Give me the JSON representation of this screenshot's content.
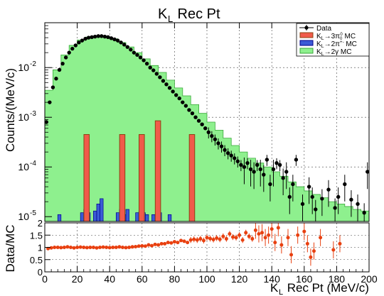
{
  "chart_data": {
    "type": "histogram",
    "title_main": "K",
    "title_sub": "L",
    "title_rest": " Rec Pt",
    "ylabel_top": "Counts/(MeV/c)",
    "ylabel_bottom": "Data/MC",
    "xlabel_main": "K",
    "xlabel_sub": "L",
    "xlabel_rest": " Rec Pt (MeV/c)",
    "xlim": [
      0,
      200
    ],
    "ylim_top_log": [
      8e-06,
      0.08
    ],
    "yscale_top": "log",
    "ylim_bottom": [
      0,
      2
    ],
    "grid": true,
    "legend_position": "top-right",
    "x_ticks": [
      "0",
      "20",
      "40",
      "60",
      "80",
      "100",
      "120",
      "140",
      "160",
      "180",
      "200"
    ],
    "y_ticks_top": [
      "10",
      "10",
      "10",
      "10"
    ],
    "y_ticks_top_exp": [
      "-5",
      "-4",
      "-3",
      "-2"
    ],
    "y_ticks_bottom": [
      "0",
      "0.5",
      "1",
      "1.5",
      "2"
    ],
    "colors": {
      "data": "#000000",
      "k3pi0": "#f05a4a",
      "k3pi0_edge": "#8b4513",
      "k2pi": "#3b5bd6",
      "k2pi_edge": "#00008b",
      "k2gamma": "#8ef08e",
      "k2gamma_edge": "#3aa83a",
      "ratio": "#e84010"
    },
    "legend": [
      {
        "label": "Data",
        "kind": "marker"
      },
      {
        "label": "K",
        "sub": "L",
        "rest": "→3π",
        "sub2": "0",
        "sup": "0",
        "tail": " MC",
        "kind": "k3pi0"
      },
      {
        "label": "K",
        "sub": "L",
        "rest": "→2π",
        "sup": "+",
        "sup2": "-",
        "tail": " MC",
        "kind": "k2pi"
      },
      {
        "label": "K",
        "sub": "L",
        "rest": "→2γ MC",
        "kind": "k2gamma"
      }
    ],
    "k2gamma_mc": {
      "x": [
        0,
        5,
        10,
        15,
        20,
        25,
        30,
        35,
        40,
        45,
        50,
        55,
        60,
        65,
        70,
        75,
        80,
        85,
        90,
        95,
        100,
        105,
        110,
        115,
        120,
        125,
        130,
        135,
        140,
        145,
        150,
        155,
        160,
        165,
        170,
        175,
        180,
        185,
        190,
        195,
        200
      ],
      "y": [
        0.0035,
        0.009,
        0.018,
        0.028,
        0.036,
        0.041,
        0.043,
        0.042,
        0.038,
        0.032,
        0.026,
        0.02,
        0.015,
        0.011,
        0.008,
        0.0056,
        0.0039,
        0.0027,
        0.0018,
        0.0012,
        0.0008,
        0.00055,
        0.00038,
        0.00027,
        0.0002,
        0.00015,
        0.00012,
        0.0001,
        8e-05,
        6.5e-05,
        5e-05,
        4e-05,
        3.3e-05,
        2.8e-05,
        2.4e-05,
        2e-05,
        1.8e-05,
        1.6e-05,
        1.4e-05,
        1.3e-05,
        1.3e-05
      ]
    },
    "k3pi0_mc": {
      "bins": [
        [
          25,
          27
        ],
        [
          47,
          49
        ],
        [
          59,
          61
        ],
        [
          69,
          71
        ],
        [
          90,
          92
        ]
      ],
      "values": [
        0.00045,
        0.00045,
        0.00045,
        0.00085,
        0.00045
      ]
    },
    "k2pi_mc": {
      "bins": [
        [
          8,
          10
        ],
        [
          22,
          24
        ],
        [
          24,
          26
        ],
        [
          26,
          28
        ],
        [
          30,
          32
        ],
        [
          32,
          34
        ],
        [
          34,
          36
        ],
        [
          44,
          46
        ],
        [
          46,
          48
        ],
        [
          48,
          50
        ],
        [
          50,
          52
        ],
        [
          56,
          58
        ],
        [
          58,
          60
        ],
        [
          60,
          62
        ],
        [
          62,
          64
        ],
        [
          66,
          68
        ],
        [
          70,
          72
        ],
        [
          76,
          78
        ]
      ],
      "values": [
        1.1e-05,
        1.2e-05,
        1.4e-05,
        1.2e-05,
        1.3e-05,
        1.8e-05,
        2.3e-05,
        1.2e-05,
        1.4e-05,
        1.1e-05,
        1.4e-05,
        1.2e-05,
        1.3e-05,
        1.2e-05,
        1.1e-05,
        1.1e-05,
        1.2e-05,
        1.1e-05
      ]
    },
    "data": {
      "x": [
        1,
        3,
        5,
        7,
        9,
        11,
        13,
        15,
        17,
        19,
        21,
        23,
        25,
        27,
        29,
        31,
        33,
        35,
        37,
        39,
        41,
        43,
        45,
        47,
        49,
        51,
        53,
        55,
        57,
        59,
        61,
        63,
        65,
        67,
        69,
        71,
        73,
        75,
        77,
        79,
        81,
        83,
        85,
        87,
        89,
        91,
        93,
        95,
        97,
        99,
        101,
        103,
        105,
        107,
        109,
        111,
        113,
        115,
        117,
        119,
        121,
        123,
        125,
        127,
        129,
        131,
        133,
        135,
        137,
        139,
        141,
        143,
        145,
        147,
        149,
        151,
        153,
        155,
        159,
        163,
        165,
        167,
        171,
        175,
        179,
        181,
        185,
        189,
        193,
        197,
        199
      ],
      "y": [
        0.0008,
        0.002,
        0.004,
        0.006,
        0.009,
        0.012,
        0.016,
        0.02,
        0.024,
        0.028,
        0.032,
        0.035,
        0.038,
        0.04,
        0.041,
        0.042,
        0.043,
        0.043,
        0.042,
        0.041,
        0.039,
        0.037,
        0.035,
        0.032,
        0.029,
        0.026,
        0.023,
        0.02,
        0.018,
        0.016,
        0.014,
        0.012,
        0.01,
        0.0088,
        0.0075,
        0.0064,
        0.0054,
        0.0046,
        0.0039,
        0.0033,
        0.0028,
        0.0024,
        0.002,
        0.0017,
        0.0014,
        0.0012,
        0.001,
        0.00085,
        0.00072,
        0.0006,
        0.0005,
        0.00042,
        0.00036,
        0.0003,
        0.00026,
        0.00022,
        0.00019,
        0.00017,
        0.00015,
        0.00013,
        0.00011,
        0.0001,
        0.00012,
        9e-05,
        8e-05,
        0.00011,
        9e-05,
        7e-05,
        0.00014,
        4.5e-05,
        9e-05,
        0.00012,
        0.00011,
        6e-05,
        8e-05,
        2.5e-05,
        4.5e-05,
        0.00014,
        1.8e-05,
        4e-05,
        2.5e-05,
        1.4e-05,
        2.3e-05,
        3.5e-05,
        1.5e-05,
        2.5e-05,
        4.5e-05,
        2.2e-05,
        1.8e-05,
        1.2e-05,
        8e-05
      ]
    },
    "ratio": {
      "x": [
        2,
        4,
        6,
        8,
        10,
        12,
        14,
        16,
        18,
        20,
        22,
        24,
        26,
        28,
        30,
        32,
        34,
        36,
        38,
        40,
        42,
        44,
        46,
        48,
        50,
        52,
        54,
        56,
        58,
        60,
        62,
        64,
        66,
        68,
        70,
        72,
        74,
        76,
        78,
        80,
        82,
        84,
        86,
        88,
        90,
        92,
        94,
        96,
        98,
        100,
        102,
        104,
        106,
        108,
        110,
        112,
        114,
        116,
        118,
        120,
        122,
        124,
        126,
        128,
        130,
        132,
        134,
        136,
        138,
        140,
        142,
        144,
        146,
        150,
        152,
        156,
        160,
        162,
        164,
        166,
        170,
        178,
        182
      ],
      "y": [
        0.95,
        0.98,
        1.0,
        1.0,
        0.99,
        1.0,
        1.02,
        1.0,
        0.98,
        1.0,
        1.01,
        1.0,
        0.99,
        1.0,
        1.0,
        0.98,
        1.0,
        1.01,
        1.0,
        0.99,
        1.0,
        1.0,
        1.02,
        1.0,
        0.99,
        1.0,
        1.02,
        1.03,
        1.05,
        1.06,
        1.05,
        1.1,
        1.07,
        1.12,
        1.1,
        1.15,
        1.15,
        1.2,
        1.18,
        1.23,
        1.2,
        1.28,
        1.25,
        1.2,
        1.3,
        1.33,
        1.3,
        1.35,
        1.28,
        1.4,
        1.36,
        1.32,
        1.38,
        1.33,
        1.45,
        1.35,
        1.55,
        1.42,
        1.4,
        1.5,
        1.3,
        1.6,
        1.45,
        1.35,
        1.7,
        1.55,
        1.6,
        1.4,
        1.5,
        1.75,
        1.2,
        1.8,
        1.1,
        1.4,
        0.7,
        1.5,
        1.65,
        1.15,
        0.6,
        0.85,
        1.4,
        0.9,
        1.15
      ]
    }
  }
}
